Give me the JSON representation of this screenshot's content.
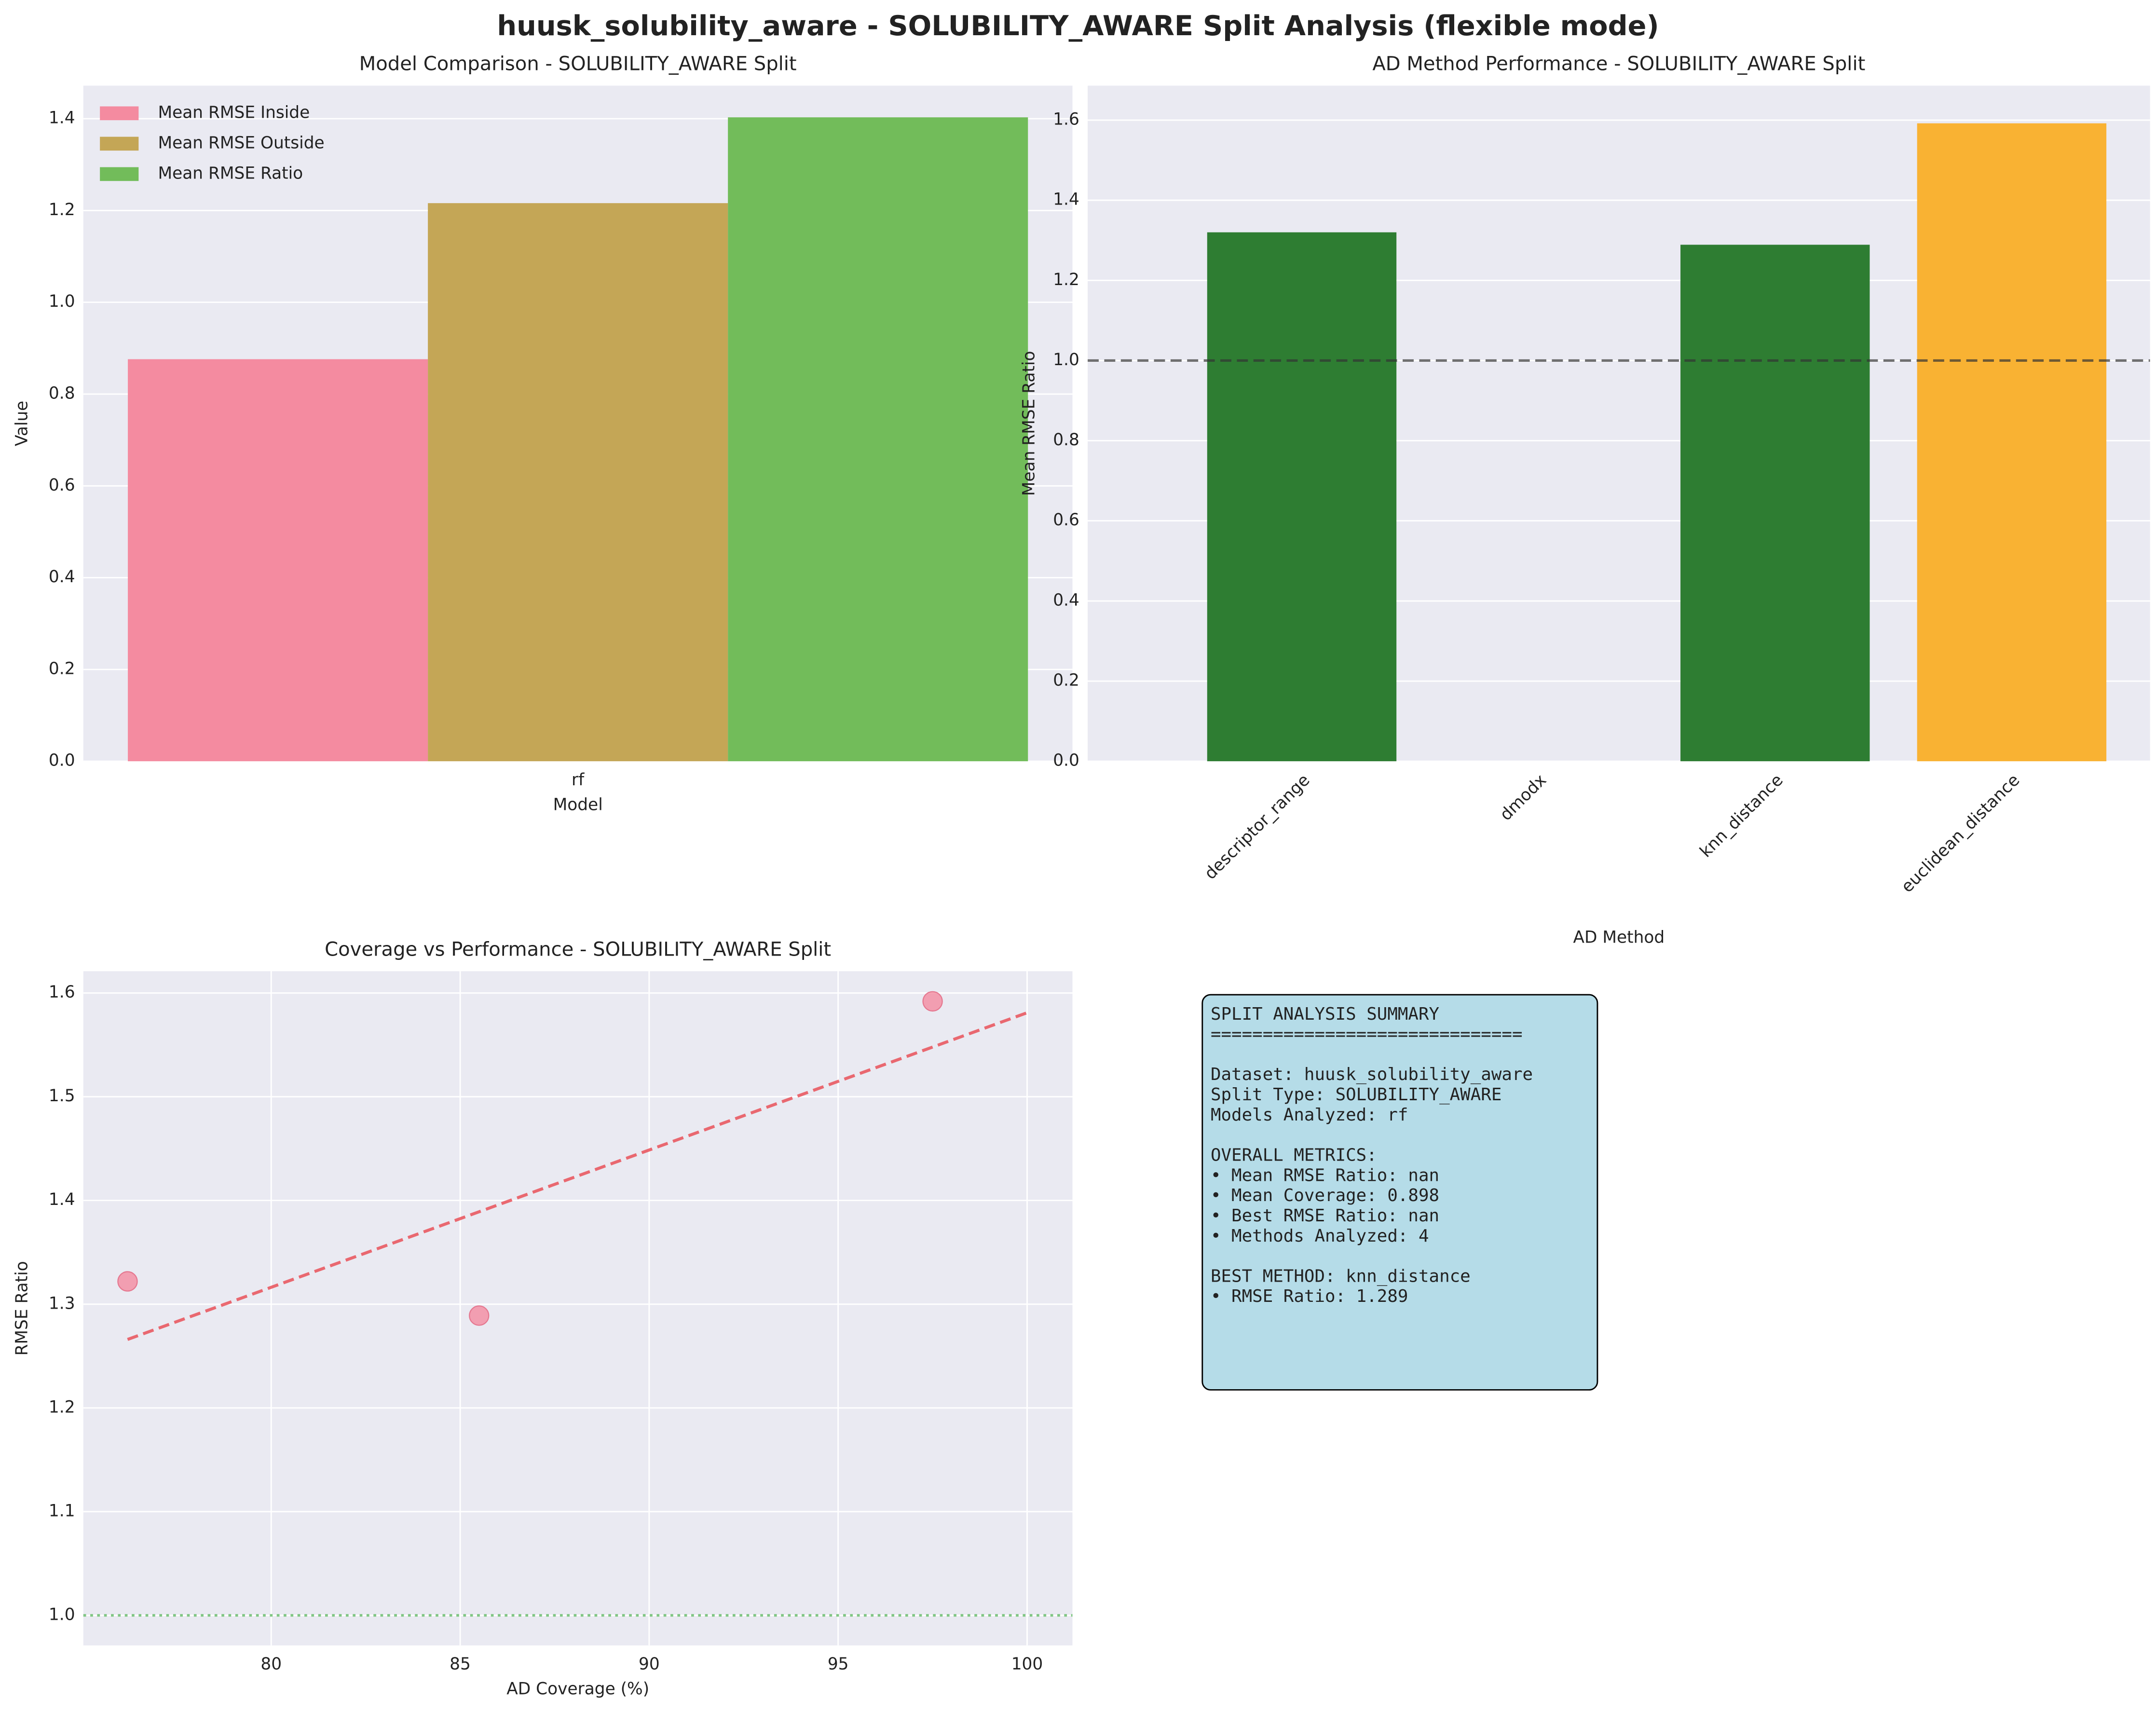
{
  "title": "huusk_solubility_aware - SOLUBILITY_AWARE Split Analysis (flexible mode)",
  "chart_data": [
    {
      "type": "bar",
      "title": "Model Comparison - SOLUBILITY_AWARE Split",
      "xlabel": "Model",
      "ylabel": "Value",
      "categories": [
        "rf"
      ],
      "series": [
        {
          "name": "Mean RMSE Inside",
          "color": "#f48ba0",
          "values": [
            0.876
          ]
        },
        {
          "name": "Mean RMSE Outside",
          "color": "#c4a656",
          "values": [
            1.216
          ]
        },
        {
          "name": "Mean RMSE Ratio",
          "color": "#72bc5a",
          "values": [
            1.403
          ]
        }
      ],
      "ylim": [
        0,
        1.472
      ],
      "yticks": [
        {
          "value": 0,
          "label": "0.0"
        },
        {
          "value": 0.2,
          "label": "0.2"
        },
        {
          "value": 0.4,
          "label": "0.4"
        },
        {
          "value": 0.6,
          "label": "0.6"
        },
        {
          "value": 0.8,
          "label": "0.8"
        },
        {
          "value": 1,
          "label": "1.0"
        },
        {
          "value": 1.2,
          "label": "1.2"
        },
        {
          "value": 1.4,
          "label": "1.4"
        }
      ],
      "grid": true,
      "legend": "upper left"
    },
    {
      "type": "bar",
      "title": "AD Method Performance - SOLUBILITY_AWARE Split",
      "xlabel": "AD Method",
      "ylabel": "Mean RMSE Ratio",
      "categories": [
        "descriptor_range",
        "dmodx",
        "knn_distance",
        "euclidean_distance"
      ],
      "values": [
        1.32,
        null,
        1.289,
        1.592
      ],
      "colors": [
        "#2e7d32",
        "#2e7d32",
        "#2e7d32",
        "#f9b233"
      ],
      "ylim": [
        0,
        1.686
      ],
      "yticks": [
        {
          "value": 0,
          "label": "0.0"
        },
        {
          "value": 0.2,
          "label": "0.2"
        },
        {
          "value": 0.4,
          "label": "0.4"
        },
        {
          "value": 0.6,
          "label": "0.6"
        },
        {
          "value": 0.8,
          "label": "0.8"
        },
        {
          "value": 1,
          "label": "1.0"
        },
        {
          "value": 1.2,
          "label": "1.2"
        },
        {
          "value": 1.4,
          "label": "1.4"
        },
        {
          "value": 1.6,
          "label": "1.6"
        }
      ],
      "ref_line": 1,
      "ref_color": "#333333",
      "grid": true
    },
    {
      "type": "scatter",
      "title": "Coverage vs Performance - SOLUBILITY_AWARE Split",
      "xlabel": "AD Coverage (%)",
      "ylabel": "RMSE Ratio",
      "x": [
        76.2,
        85.5,
        97.5
      ],
      "values": [
        1.322,
        1.289,
        1.592
      ],
      "color": "#f48ba0",
      "trend": {
        "x": [
          76.2,
          100
        ],
        "values": [
          1.266,
          1.581
        ],
        "color": "#e8474f"
      },
      "ref_line": 1,
      "ref_color": "#4caf50",
      "xlim": [
        75.03,
        101.2
      ],
      "xticks": [
        80,
        85,
        90,
        95,
        100
      ],
      "ylim": [
        0.971,
        1.621
      ],
      "yticks": [
        {
          "value": 1,
          "label": "1.0"
        },
        {
          "value": 1.1,
          "label": "1.1"
        },
        {
          "value": 1.2,
          "label": "1.2"
        },
        {
          "value": 1.3,
          "label": "1.3"
        },
        {
          "value": 1.4,
          "label": "1.4"
        },
        {
          "value": 1.5,
          "label": "1.5"
        },
        {
          "value": 1.6,
          "label": "1.6"
        }
      ],
      "grid": true
    }
  ],
  "summary": [
    [
      "SPLIT ANALYSIS SUMMARY",
      "=============================="
    ],
    [
      "Dataset: huusk_solubility_aware",
      "Split Type: SOLUBILITY_AWARE",
      "Models Analyzed: rf"
    ],
    [
      "OVERALL METRICS:",
      "• Mean RMSE Ratio: nan",
      "• Mean Coverage: 0.898",
      "• Best RMSE Ratio: nan",
      "• Methods Analyzed: 4"
    ],
    [
      "BEST METHOD: knn_distance",
      "• RMSE Ratio: 1.289"
    ]
  ]
}
